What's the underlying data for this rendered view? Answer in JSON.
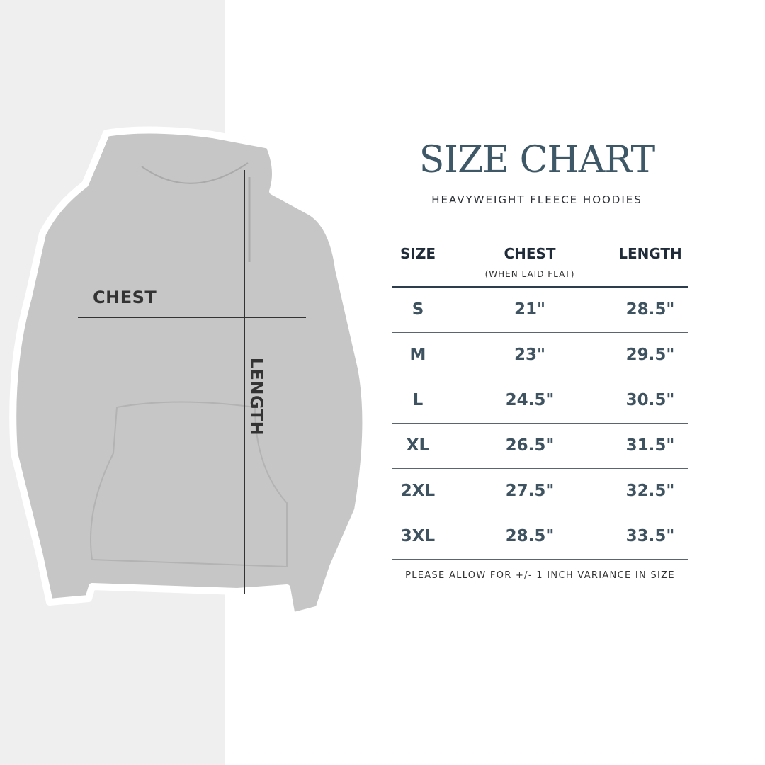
{
  "title": "SIZE CHART",
  "subtitle": "HEAVYWEIGHT FLEECE HOODIES",
  "image_labels": {
    "chest": "CHEST",
    "length": "LENGTH"
  },
  "table": {
    "headers": {
      "size": "SIZE",
      "chest": "CHEST",
      "chest_note": "(WHEN LAID FLAT)",
      "length": "LENGTH"
    },
    "rows": [
      {
        "size": "S",
        "chest": "21\"",
        "length": "28.5\""
      },
      {
        "size": "M",
        "chest": "23\"",
        "length": "29.5\""
      },
      {
        "size": "L",
        "chest": "24.5\"",
        "length": "30.5\""
      },
      {
        "size": "XL",
        "chest": "26.5\"",
        "length": "31.5\""
      },
      {
        "size": "2XL",
        "chest": "27.5\"",
        "length": "32.5\""
      },
      {
        "size": "3XL",
        "chest": "28.5\"",
        "length": "33.5\""
      }
    ]
  },
  "note": "PLEASE ALLOW FOR +/- 1 INCH VARIANCE IN SIZE",
  "colors": {
    "title": "#3e5868",
    "values": "#3e5260",
    "hoodie": "#c6c6c6",
    "band": "#efefef"
  }
}
